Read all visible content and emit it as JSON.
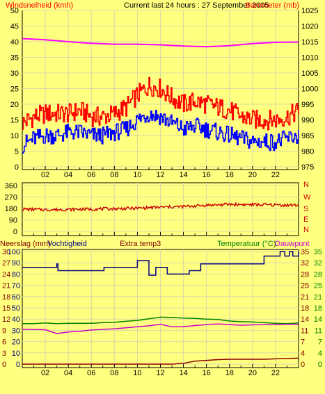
{
  "header": {
    "wind_label": "Windsnelheid (kmh)",
    "title": "Current last 24 hours : 27 September 2005",
    "baro_label": "Barometer (mb)"
  },
  "chart_data": [
    {
      "type": "line",
      "title": "Current last 24 hours : 27 September 2005",
      "x_ticks": [
        "02",
        "04",
        "06",
        "08",
        "10",
        "12",
        "14",
        "16",
        "18",
        "20",
        "22"
      ],
      "x_range_hours": [
        0,
        24
      ],
      "left_axis": {
        "label": "Windsnelheid (kmh)",
        "range": [
          0,
          50
        ],
        "ticks": [
          0,
          5,
          10,
          15,
          20,
          25,
          30,
          35,
          40,
          45,
          50
        ]
      },
      "right_axis": {
        "label": "Barometer (mb)",
        "range": [
          975,
          1025
        ],
        "ticks": [
          975,
          980,
          985,
          990,
          995,
          1000,
          1005,
          1010,
          1015,
          1020,
          1025
        ]
      },
      "series": [
        {
          "name": "Windsnelheid (kmh)",
          "color": "#ff0000",
          "axis": "left",
          "x": [
            0,
            1,
            2,
            3,
            4,
            5,
            6,
            7,
            8,
            9,
            10,
            11,
            12,
            13,
            14,
            15,
            16,
            17,
            18,
            19,
            20,
            21,
            22,
            23,
            24
          ],
          "y": [
            14,
            16,
            17,
            17,
            17,
            18,
            16,
            16,
            17,
            19,
            23,
            26,
            25,
            22,
            20,
            21,
            20,
            19,
            18,
            16,
            15,
            15,
            15,
            16,
            18
          ]
        },
        {
          "name": "Wind (blue)",
          "color": "#0000ff",
          "axis": "left",
          "x": [
            0,
            1,
            2,
            3,
            4,
            5,
            6,
            7,
            8,
            9,
            10,
            11,
            12,
            13,
            14,
            15,
            16,
            17,
            18,
            19,
            20,
            21,
            22,
            23,
            24
          ],
          "y": [
            7,
            9,
            10,
            10,
            11,
            11,
            10,
            10,
            11,
            12,
            15,
            17,
            16,
            14,
            12,
            13,
            12,
            11,
            10,
            9,
            8,
            8,
            8,
            9,
            10
          ]
        },
        {
          "name": "Barometer (mb)",
          "color": "#ff00ff",
          "axis": "right",
          "x": [
            0,
            2,
            4,
            6,
            8,
            10,
            12,
            14,
            16,
            18,
            20,
            22,
            24
          ],
          "y": [
            1016,
            1015.6,
            1015,
            1014.5,
            1014.2,
            1014.2,
            1014,
            1013.6,
            1013.4,
            1013.7,
            1014.4,
            1014.8,
            1014.9
          ]
        }
      ]
    },
    {
      "type": "line",
      "left_axis": {
        "range": [
          0,
          360
        ],
        "ticks": [
          0,
          90,
          180,
          270,
          360
        ]
      },
      "right_axis": {
        "ticks": [
          "N",
          "E",
          "S",
          "W",
          "N"
        ]
      },
      "series": [
        {
          "name": "Wind direction",
          "color": "#cc0000",
          "x": [
            0,
            2,
            4,
            6,
            8,
            10,
            12,
            14,
            16,
            18,
            20,
            22,
            24
          ],
          "y": [
            175,
            170,
            172,
            175,
            178,
            182,
            190,
            195,
            205,
            212,
            210,
            208,
            205
          ]
        }
      ]
    },
    {
      "type": "line",
      "labels": {
        "rain": "Neerslag (mm)",
        "humidity": "Vochtigheid",
        "extra": "Extra temp3",
        "temp": "Temperatuur (°C)",
        "dew": "Dauwpunt"
      },
      "axis_rain": {
        "range": [
          0,
          30
        ],
        "ticks": [
          0,
          3,
          6,
          9,
          12,
          15,
          18,
          21,
          24,
          27,
          30
        ]
      },
      "axis_humidity": {
        "range": [
          0,
          100
        ],
        "ticks": [
          0,
          10,
          20,
          30,
          40,
          50,
          60,
          70,
          80,
          90,
          100
        ]
      },
      "axis_extra": {
        "ticks": [
          0,
          4,
          7,
          11,
          14,
          18,
          21,
          25,
          28,
          32,
          35
        ]
      },
      "axis_temp": {
        "range": [
          0,
          35
        ],
        "ticks": [
          0,
          4,
          7,
          11,
          14,
          18,
          21,
          25,
          28,
          32,
          35
        ]
      },
      "series": [
        {
          "name": "Vochtigheid",
          "color": "#000080",
          "axis": "humidity",
          "x": [
            0,
            2.8,
            3,
            3.1,
            4,
            7,
            7.1,
            9.9,
            10,
            10.8,
            11,
            11.5,
            11.6,
            12.5,
            12.6,
            13.5,
            14,
            14.5,
            15,
            15.5,
            16,
            16.5,
            17,
            19.5,
            20.9,
            21,
            22,
            22.4,
            22.8,
            23.2,
            23.5,
            24
          ],
          "y": [
            86,
            86,
            89,
            83,
            83,
            83,
            86,
            86,
            92,
            92,
            79,
            79,
            86,
            86,
            80,
            80,
            80,
            83,
            83,
            89,
            89,
            89,
            89,
            89,
            89,
            96,
            96,
            100,
            96,
            100,
            96,
            100
          ]
        },
        {
          "name": "Temperatuur (°C)",
          "color": "#008000",
          "axis": "temp",
          "x": [
            0,
            1,
            2,
            3,
            4,
            5,
            6,
            7,
            8,
            9,
            10,
            11,
            12,
            13,
            14,
            15,
            16,
            17,
            18,
            19,
            20,
            21,
            22,
            23,
            24
          ],
          "y": [
            12.6,
            12.6,
            12.8,
            12.6,
            12.7,
            12.7,
            12.7,
            12.9,
            13,
            13.3,
            13.6,
            14.1,
            14.6,
            14.5,
            14.3,
            14.2,
            14,
            13.9,
            13.4,
            13.2,
            13.1,
            12.9,
            12.7,
            12.6,
            12.8
          ]
        },
        {
          "name": "Dauwpunt",
          "color": "#cc00cc",
          "axis": "temp",
          "x": [
            0,
            1,
            2,
            3,
            4,
            5,
            6,
            7,
            8,
            9,
            10,
            11,
            12,
            13,
            14,
            15,
            16,
            17,
            18,
            19,
            20,
            21,
            22,
            23,
            24
          ],
          "y": [
            10.8,
            10.8,
            10.7,
            9.5,
            10,
            10.2,
            10.6,
            10.8,
            11,
            11.3,
            11.6,
            11.9,
            12.4,
            11.6,
            11.6,
            12,
            12.3,
            12.5,
            12.3,
            12.1,
            12.2,
            12.3,
            12.3,
            12.4,
            12.4
          ]
        },
        {
          "name": "Neerslag (mm)",
          "color": "#8b0000",
          "axis": "rain",
          "x": [
            0,
            13,
            14,
            15,
            16,
            17,
            18,
            19,
            20,
            21,
            22,
            23,
            24
          ],
          "y": [
            0,
            0,
            0.2,
            0.8,
            1,
            1.2,
            1.3,
            1.3,
            1.3,
            1.3,
            1.4,
            1.5,
            1.6
          ]
        }
      ],
      "x_ticks": [
        "02",
        "04",
        "06",
        "08",
        "10",
        "12",
        "14",
        "16",
        "18",
        "20",
        "22"
      ]
    }
  ]
}
